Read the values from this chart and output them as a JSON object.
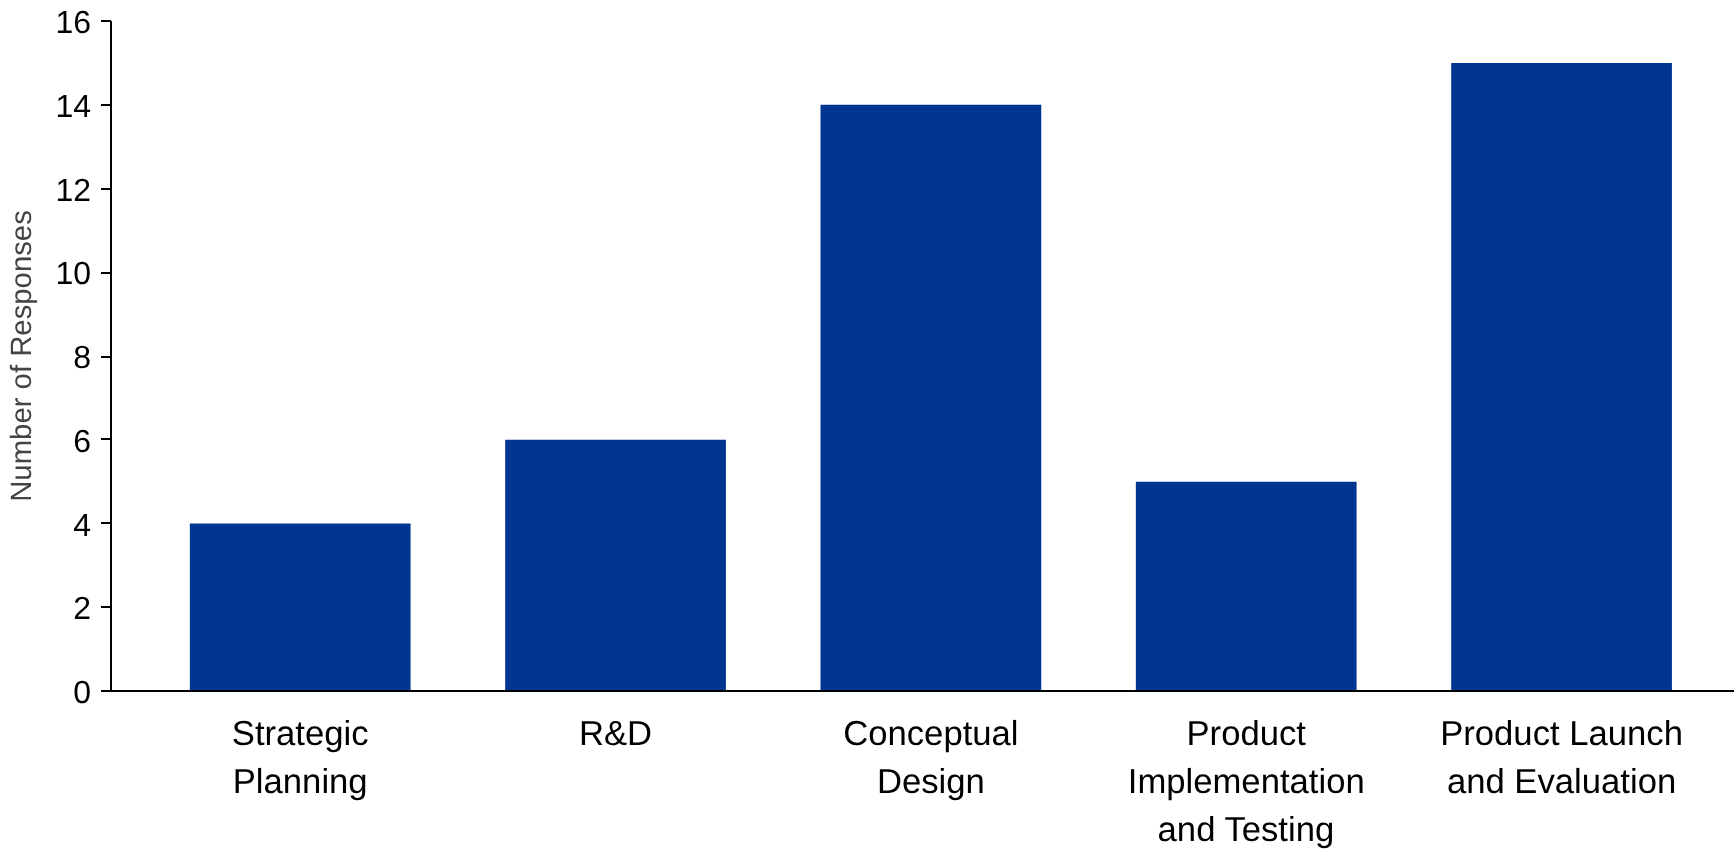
{
  "chart_data": {
    "type": "bar",
    "ylabel": "Number of Responses",
    "categories": [
      "Strategic\nPlanning",
      "R&D",
      "Conceptual\nDesign",
      "Product\nImplementation\nand Testing",
      "Product Launch\nand Evaluation"
    ],
    "values": [
      4,
      6,
      14,
      5,
      15
    ],
    "color": "#003591",
    "ylim": [
      0,
      16
    ],
    "yticks": [
      0,
      2,
      4,
      6,
      8,
      10,
      12,
      14,
      16
    ],
    "grid": false
  }
}
